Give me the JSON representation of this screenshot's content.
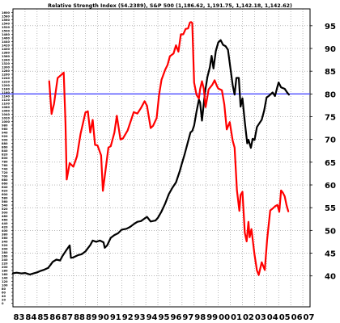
{
  "chart_data": {
    "type": "line",
    "title": "Relative Strength Index (54.2389), S&P 500 (1,186.62, 1,191.75, 1,142.18, 1,142.62)",
    "x_ticks": [
      "83",
      "84",
      "85",
      "86",
      "87",
      "88",
      "89",
      "90",
      "91",
      "92",
      "93",
      "94",
      "95",
      "96",
      "97",
      "98",
      "99",
      "00",
      "01",
      "02",
      "03",
      "04",
      "05",
      "06",
      "07"
    ],
    "x_range": [
      1983,
      2007.6
    ],
    "left_axis": {
      "range": [
        -20,
        1620
      ],
      "ticks": [
        0,
        20,
        40,
        60,
        80,
        100,
        120,
        140,
        160,
        180,
        200,
        220,
        240,
        260,
        280,
        300,
        320,
        340,
        360,
        380,
        400,
        420,
        440,
        460,
        480,
        500,
        520,
        540,
        560,
        580,
        600,
        620,
        640,
        660,
        680,
        700,
        720,
        740,
        760,
        780,
        800,
        820,
        840,
        860,
        880,
        900,
        920,
        940,
        960,
        980,
        1000,
        1020,
        1040,
        1060,
        1080,
        1100,
        1120,
        1140,
        1160,
        1180,
        1200,
        1220,
        1240,
        1260,
        1280,
        1300,
        1320,
        1340,
        1360,
        1380,
        1400,
        1420,
        1440,
        1460,
        1480,
        1500,
        1520,
        1540,
        1560,
        1580,
        1600
      ]
    },
    "right_axis": {
      "range": [
        33.2,
        98.7
      ],
      "ticks": [
        40,
        45,
        50,
        55,
        60,
        65,
        70,
        75,
        80,
        85,
        90,
        95
      ]
    },
    "grid": true,
    "reference_line": {
      "value": 80,
      "axis": "right",
      "color": "#4a4aff"
    },
    "series": [
      {
        "axis": "left",
        "color": "#000000",
        "points": [
          [
            1983.0,
            165
          ],
          [
            1983.3,
            168
          ],
          [
            1983.7,
            164
          ],
          [
            1984.0,
            166
          ],
          [
            1984.4,
            158
          ],
          [
            1984.7,
            164
          ],
          [
            1985.0,
            170
          ],
          [
            1985.3,
            178
          ],
          [
            1985.6,
            185
          ],
          [
            1985.9,
            194
          ],
          [
            1986.1,
            210
          ],
          [
            1986.3,
            228
          ],
          [
            1986.6,
            240
          ],
          [
            1986.9,
            235
          ],
          [
            1987.1,
            260
          ],
          [
            1987.4,
            290
          ],
          [
            1987.7,
            318
          ],
          [
            1987.8,
            250
          ],
          [
            1988.0,
            252
          ],
          [
            1988.4,
            265
          ],
          [
            1988.7,
            270
          ],
          [
            1989.0,
            285
          ],
          [
            1989.4,
            320
          ],
          [
            1989.6,
            345
          ],
          [
            1989.9,
            338
          ],
          [
            1990.2,
            345
          ],
          [
            1990.5,
            335
          ],
          [
            1990.6,
            305
          ],
          [
            1990.8,
            318
          ],
          [
            1991.1,
            360
          ],
          [
            1991.4,
            375
          ],
          [
            1991.7,
            385
          ],
          [
            1992.0,
            405
          ],
          [
            1992.4,
            410
          ],
          [
            1992.7,
            420
          ],
          [
            1993.0,
            435
          ],
          [
            1993.3,
            448
          ],
          [
            1993.6,
            452
          ],
          [
            1993.9,
            466
          ],
          [
            1994.1,
            475
          ],
          [
            1994.4,
            450
          ],
          [
            1994.8,
            455
          ],
          [
            1995.0,
            470
          ],
          [
            1995.3,
            505
          ],
          [
            1995.6,
            548
          ],
          [
            1995.9,
            600
          ],
          [
            1996.2,
            635
          ],
          [
            1996.5,
            665
          ],
          [
            1996.8,
            725
          ],
          [
            1997.0,
            772
          ],
          [
            1997.2,
            815
          ],
          [
            1997.5,
            890
          ],
          [
            1997.7,
            940
          ],
          [
            1997.85,
            948
          ],
          [
            1998.0,
            978
          ],
          [
            1998.2,
            1055
          ],
          [
            1998.4,
            1120
          ],
          [
            1998.5,
            1105
          ],
          [
            1998.65,
            1005
          ],
          [
            1998.9,
            1160
          ],
          [
            1999.1,
            1245
          ],
          [
            1999.3,
            1298
          ],
          [
            1999.45,
            1362
          ],
          [
            1999.6,
            1292
          ],
          [
            1999.8,
            1388
          ],
          [
            2000.0,
            1435
          ],
          [
            2000.2,
            1448
          ],
          [
            2000.4,
            1422
          ],
          [
            2000.6,
            1415
          ],
          [
            2000.8,
            1395
          ],
          [
            2001.0,
            1298
          ],
          [
            2001.2,
            1198
          ],
          [
            2001.35,
            1148
          ],
          [
            2001.5,
            1240
          ],
          [
            2001.7,
            1240
          ],
          [
            2001.85,
            1082
          ],
          [
            2002.0,
            1128
          ],
          [
            2002.2,
            998
          ],
          [
            2002.4,
            880
          ],
          [
            2002.5,
            900
          ],
          [
            2002.7,
            855
          ],
          [
            2002.85,
            905
          ],
          [
            2003.0,
            898
          ],
          [
            2003.2,
            970
          ],
          [
            2003.4,
            990
          ],
          [
            2003.6,
            1010
          ],
          [
            2003.8,
            1060
          ],
          [
            2004.0,
            1132
          ],
          [
            2004.2,
            1142
          ],
          [
            2004.5,
            1160
          ],
          [
            2004.7,
            1140
          ],
          [
            2004.9,
            1192
          ],
          [
            2005.0,
            1215
          ],
          [
            2005.2,
            1188
          ],
          [
            2005.5,
            1180
          ],
          [
            2005.7,
            1160
          ],
          [
            2005.85,
            1148
          ]
        ]
      },
      {
        "axis": "right",
        "color": "#ff0000",
        "points": [
          [
            1986.0,
            82.8
          ],
          [
            1986.2,
            75.6
          ],
          [
            1986.4,
            77.8
          ],
          [
            1986.7,
            83.5
          ],
          [
            1987.0,
            84.2
          ],
          [
            1987.2,
            84.7
          ],
          [
            1987.35,
            73.6
          ],
          [
            1987.45,
            61.2
          ],
          [
            1987.7,
            64.8
          ],
          [
            1988.0,
            64.0
          ],
          [
            1988.3,
            66.3
          ],
          [
            1988.6,
            71.2
          ],
          [
            1989.0,
            75.9
          ],
          [
            1989.2,
            76.2
          ],
          [
            1989.4,
            71.5
          ],
          [
            1989.6,
            74.3
          ],
          [
            1989.8,
            68.8
          ],
          [
            1990.0,
            68.7
          ],
          [
            1990.3,
            66.5
          ],
          [
            1990.45,
            58.7
          ],
          [
            1990.7,
            64.0
          ],
          [
            1990.9,
            68.2
          ],
          [
            1991.1,
            68.5
          ],
          [
            1991.4,
            71.5
          ],
          [
            1991.6,
            75.2
          ],
          [
            1991.9,
            70.0
          ],
          [
            1992.1,
            70.2
          ],
          [
            1992.5,
            72.0
          ],
          [
            1992.7,
            73.6
          ],
          [
            1993.0,
            76.0
          ],
          [
            1993.3,
            75.7
          ],
          [
            1993.6,
            76.9
          ],
          [
            1993.9,
            78.4
          ],
          [
            1994.1,
            77.4
          ],
          [
            1994.4,
            72.5
          ],
          [
            1994.6,
            73.0
          ],
          [
            1994.9,
            74.7
          ],
          [
            1995.1,
            79.8
          ],
          [
            1995.3,
            83.1
          ],
          [
            1995.6,
            85.3
          ],
          [
            1995.8,
            86.4
          ],
          [
            1996.0,
            88.3
          ],
          [
            1996.3,
            88.9
          ],
          [
            1996.5,
            90.7
          ],
          [
            1996.7,
            89.3
          ],
          [
            1996.9,
            93.1
          ],
          [
            1997.1,
            93.1
          ],
          [
            1997.3,
            94.3
          ],
          [
            1997.5,
            94.4
          ],
          [
            1997.65,
            95.7
          ],
          [
            1997.75,
            95.8
          ],
          [
            1997.85,
            95.6
          ],
          [
            1998.0,
            82.5
          ],
          [
            1998.2,
            79.8
          ],
          [
            1998.4,
            79.0
          ],
          [
            1998.5,
            81.1
          ],
          [
            1998.65,
            82.8
          ],
          [
            1998.8,
            81.2
          ],
          [
            1998.95,
            77.1
          ],
          [
            1999.2,
            81.0
          ],
          [
            1999.5,
            82.0
          ],
          [
            1999.7,
            83.0
          ],
          [
            1999.9,
            81.7
          ],
          [
            2000.0,
            81.2
          ],
          [
            2000.3,
            80.8
          ],
          [
            2000.5,
            77.7
          ],
          [
            2000.7,
            72.2
          ],
          [
            2000.95,
            73.8
          ],
          [
            2001.2,
            69.7
          ],
          [
            2001.35,
            68.2
          ],
          [
            2001.55,
            58.8
          ],
          [
            2001.75,
            54.3
          ],
          [
            2001.85,
            57.8
          ],
          [
            2002.0,
            58.5
          ],
          [
            2002.2,
            49.5
          ],
          [
            2002.35,
            47.6
          ],
          [
            2002.5,
            51.9
          ],
          [
            2002.6,
            48.5
          ],
          [
            2002.75,
            50.3
          ],
          [
            2003.0,
            44.7
          ],
          [
            2003.2,
            41.2
          ],
          [
            2003.35,
            40.2
          ],
          [
            2003.6,
            43.0
          ],
          [
            2003.85,
            41.3
          ],
          [
            2004.05,
            48.0
          ],
          [
            2004.3,
            54.4
          ],
          [
            2004.5,
            54.8
          ],
          [
            2004.7,
            55.3
          ],
          [
            2004.9,
            55.6
          ],
          [
            2005.05,
            54.1
          ],
          [
            2005.2,
            58.8
          ],
          [
            2005.35,
            58.3
          ],
          [
            2005.5,
            57.5
          ],
          [
            2005.65,
            55.6
          ],
          [
            2005.8,
            54.2
          ]
        ]
      }
    ]
  }
}
